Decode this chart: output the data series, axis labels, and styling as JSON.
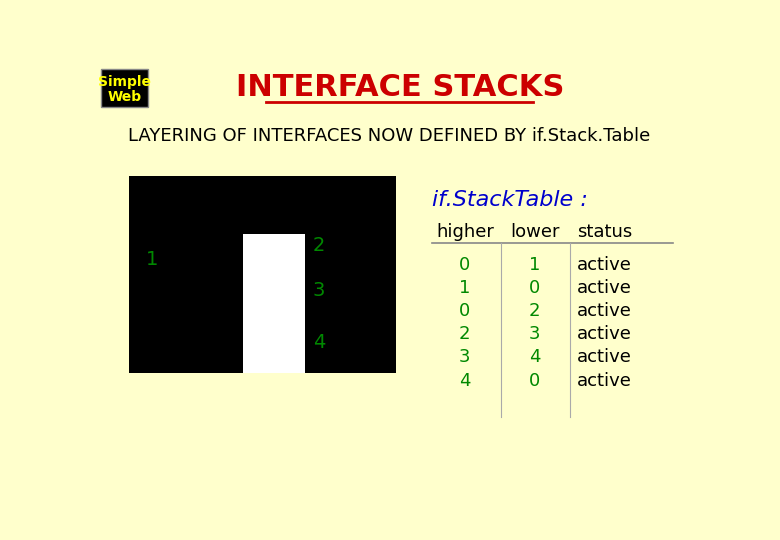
{
  "bg_color": "#ffffcc",
  "header_bg": "#000000",
  "header_text": "INTERFACE STACKS",
  "header_text_color": "#cc0000",
  "logo_text_line1": "Simple",
  "logo_text_line2": "Web",
  "logo_text_color": "#ffff00",
  "subtitle": "LAYERING OF INTERFACES NOW DEFINED BY if.Stack.Table",
  "subtitle_color": "#000000",
  "table_title": "if.StackTable :",
  "table_title_color": "#0000cc",
  "col_headers": [
    "higher",
    "lower",
    "status"
  ],
  "col_header_color": "#000000",
  "higher_vals": [
    "0",
    "1",
    "0",
    "2",
    "3",
    "4"
  ],
  "lower_vals": [
    "1",
    "0",
    "2",
    "3",
    "4",
    "0"
  ],
  "status_vals": [
    "active",
    "active",
    "active",
    "active",
    "active",
    "active"
  ],
  "data_num_color": "#008800",
  "data_status_color": "#000000",
  "shape_bg": "#000000",
  "shape_gap_color": "#ffffff",
  "label_color": "#008800"
}
